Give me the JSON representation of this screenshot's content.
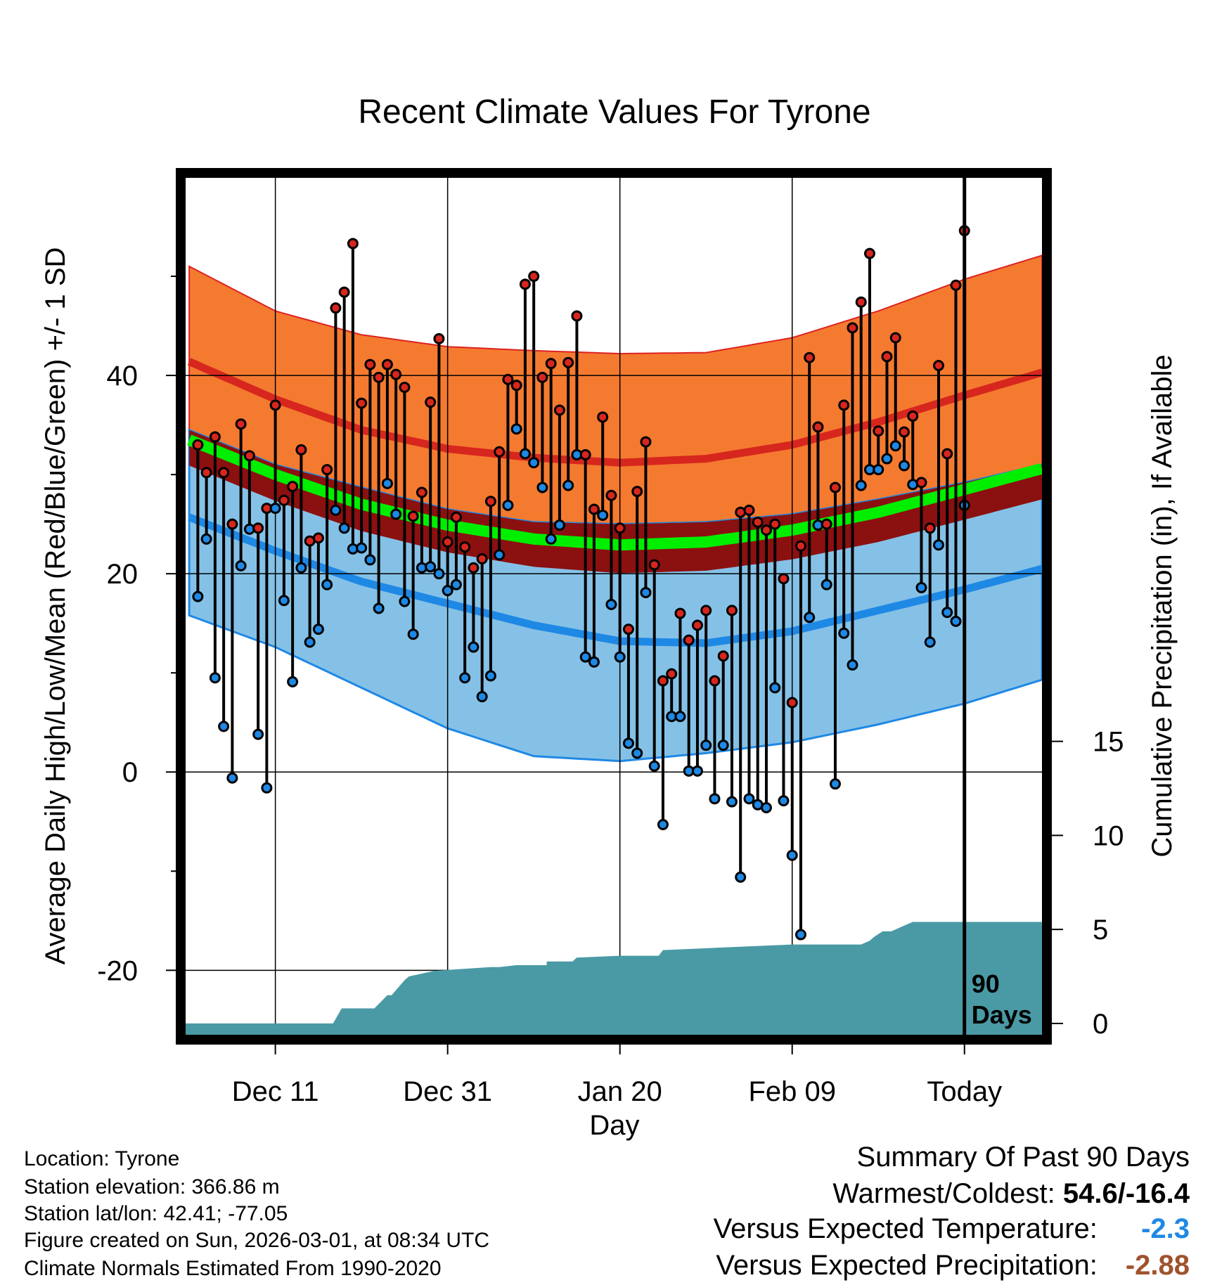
{
  "chart_data": {
    "type": "line",
    "title": "Recent Climate Values For Tyrone",
    "xlabel": "Day",
    "ylabel": "Average Daily High/Low/Mean (Red/Blue/Green) +/- 1 SD",
    "y2label": "Cumulative Precipitation (in), If Available",
    "ylim": [
      -26.5,
      60
    ],
    "y2lim": [
      -0.6,
      45
    ],
    "xlim": [
      -90.5,
      9
    ],
    "x_ticks": [
      {
        "x": -80,
        "label": "Dec 11"
      },
      {
        "x": -60,
        "label": "Dec 31"
      },
      {
        "x": -40,
        "label": "Jan 20"
      },
      {
        "x": -20,
        "label": "Feb 09"
      },
      {
        "x": 0,
        "label": "Today"
      }
    ],
    "y_ticks": [
      "-20",
      "0",
      "20",
      "40"
    ],
    "y_tick_values": [
      -20,
      0,
      20,
      40
    ],
    "y2_ticks": [
      "0",
      "5",
      "10",
      "15"
    ],
    "y2_tick_values": [
      0,
      5,
      10,
      15
    ],
    "today_marker": {
      "x": 0,
      "label_line1": "90",
      "label_line2": "Days"
    },
    "normals": {
      "x": [
        -90,
        -80,
        -70,
        -60,
        -50,
        -40,
        -30,
        -20,
        -10,
        0,
        9
      ],
      "high_mean": [
        41.4,
        37.6,
        34.5,
        32.6,
        31.7,
        31.2,
        31.6,
        33.0,
        35.3,
        38.0,
        40.3
      ],
      "high_plus_sd": [
        51.0,
        46.5,
        44.1,
        42.9,
        42.5,
        42.2,
        42.3,
        43.8,
        46.5,
        49.7,
        52.1
      ],
      "mean_mean": [
        33.5,
        30.0,
        27.0,
        24.9,
        23.5,
        22.9,
        23.2,
        24.4,
        26.2,
        28.5,
        30.6
      ],
      "low_mean": [
        25.7,
        22.3,
        19.2,
        17.0,
        14.8,
        13.2,
        13.0,
        14.2,
        16.3,
        18.4,
        20.5
      ],
      "low_minus_sd": [
        15.8,
        12.6,
        8.5,
        4.4,
        1.6,
        1.1,
        1.9,
        3.0,
        4.8,
        6.9,
        9.3
      ],
      "high_minus_sd_low_plus_sd_band": [
        34.5,
        31.0,
        28.7,
        26.5,
        25.2,
        25.0,
        25.2,
        26.0,
        27.5,
        29.2,
        31.0
      ]
    },
    "series": [
      {
        "name": "Daily High",
        "color": "#d7261e",
        "values": [
          33.0,
          30.2,
          33.8,
          30.2,
          25.0,
          35.1,
          31.9,
          24.6,
          26.6,
          37.0,
          27.4,
          28.8,
          32.5,
          23.3,
          23.6,
          30.5,
          46.8,
          48.4,
          53.3,
          37.2,
          41.1,
          39.8,
          41.1,
          40.1,
          38.8,
          25.8,
          28.2,
          37.3,
          43.7,
          23.2,
          25.7,
          22.7,
          20.6,
          21.5,
          27.3,
          32.3,
          39.6,
          39.0,
          49.2,
          50.0,
          39.8,
          41.2,
          36.5,
          41.3,
          46.0,
          32.0,
          26.5,
          35.8,
          27.9,
          24.6,
          14.4,
          28.3,
          33.3,
          20.9,
          9.2,
          9.9,
          16.0,
          13.3,
          14.8,
          16.3,
          9.2,
          11.7,
          16.3,
          26.2,
          26.4,
          25.2,
          24.4,
          25.0,
          19.5,
          7.0,
          22.8,
          41.8,
          34.8,
          25.0,
          28.7,
          37.0,
          44.8,
          47.4,
          52.3,
          34.4,
          41.9,
          43.8,
          34.3,
          35.9,
          29.2,
          24.6,
          41.0,
          32.1,
          49.1,
          54.6
        ]
      },
      {
        "name": "Daily Low",
        "color": "#1e88e5",
        "values": [
          17.7,
          23.5,
          9.5,
          4.6,
          -0.6,
          20.8,
          24.5,
          3.8,
          -1.6,
          26.6,
          17.3,
          9.1,
          20.6,
          13.1,
          14.4,
          18.9,
          26.4,
          24.6,
          22.5,
          22.6,
          21.4,
          16.5,
          29.1,
          26.0,
          17.2,
          13.9,
          20.6,
          20.7,
          20.0,
          18.3,
          18.9,
          9.5,
          12.6,
          7.6,
          9.7,
          21.9,
          26.9,
          34.6,
          32.1,
          31.2,
          28.7,
          23.5,
          24.9,
          28.9,
          32.0,
          11.6,
          11.1,
          25.9,
          16.9,
          11.6,
          2.9,
          1.9,
          18.1,
          0.6,
          -5.3,
          5.6,
          5.6,
          0.1,
          0.1,
          2.7,
          -2.7,
          2.7,
          -3.0,
          -10.6,
          -2.7,
          -3.3,
          -3.6,
          8.5,
          -2.9,
          -8.4,
          -16.4,
          15.6,
          24.9,
          18.9,
          -1.2,
          14.0,
          10.8,
          28.9,
          30.5,
          30.5,
          31.6,
          32.9,
          30.9,
          29.0,
          18.6,
          13.1,
          22.9,
          16.1,
          15.2,
          26.9
        ]
      }
    ],
    "precipitation": {
      "name": "Cumulative Precipitation",
      "color": "#4a9aa5",
      "x": [
        -90.5,
        -73.3,
        -72.3,
        -68.5,
        -67,
        -66.5,
        -65,
        -64.5,
        -63.5,
        -61.5,
        -55,
        -54,
        -52,
        -51.7,
        -48.5,
        -48.5,
        -45.5,
        -45,
        -40,
        -35.5,
        -35,
        -20,
        -12,
        -11,
        -10.5,
        -9.5,
        -8.5,
        -7,
        -6,
        -3,
        -2,
        1,
        9
      ],
      "values": [
        0,
        0,
        0.8,
        0.8,
        1.5,
        1.5,
        2.3,
        2.5,
        2.6,
        2.8,
        3.0,
        3.0,
        3.1,
        3.1,
        3.1,
        3.3,
        3.3,
        3.5,
        3.6,
        3.6,
        3.9,
        4.2,
        4.2,
        4.4,
        4.6,
        4.9,
        4.9,
        5.2,
        5.4,
        5.4,
        5.4,
        5.4,
        5.4
      ]
    }
  },
  "footer": {
    "location": "Location: Tyrone",
    "elevation": "Station elevation: 366.86 m",
    "latlon": "Station lat/lon: 42.41; -77.05",
    "created": "Figure created on Sun, 2026-03-01, at 08:34 UTC",
    "normals": "Climate Normals Estimated From 1990-2020"
  },
  "summary": {
    "title": "Summary Of Past 90 Days",
    "warmest_label": "Warmest/Coldest:",
    "warmest_value": "54.6/-16.4",
    "temp_label": "Versus Expected Temperature:",
    "temp_value": "-2.3",
    "temp_color": "#1e88e5",
    "precip_label": "Versus Expected Precipitation:",
    "precip_value": "-2.88",
    "precip_color": "#a0522d"
  },
  "colors": {
    "orange": "#f47a30",
    "red_line": "#d7261e",
    "dark_red": "#8b1010",
    "green": "#00ee00",
    "light_blue": "#85c1e6",
    "blue": "#1e88e5",
    "teal": "#4a9aa5"
  }
}
